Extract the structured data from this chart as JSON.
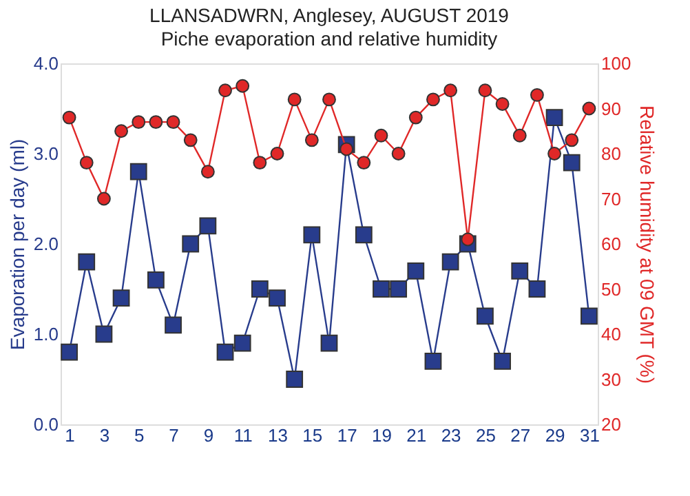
{
  "chart_data": {
    "type": "line",
    "title": "LLANSADWRN, Anglesey, AUGUST 2019",
    "subtitle": "Piche evaporation and relative humidity",
    "ylabel": "Evaporation per day (ml)",
    "y2label": "Relative humidity at 09 GMT (%)",
    "x": [
      1,
      2,
      3,
      4,
      5,
      6,
      7,
      8,
      9,
      10,
      11,
      12,
      13,
      14,
      15,
      16,
      17,
      18,
      19,
      20,
      21,
      22,
      23,
      24,
      25,
      26,
      27,
      28,
      29,
      30,
      31
    ],
    "xlim": [
      0.5,
      31.5
    ],
    "xticks": [
      1,
      3,
      5,
      7,
      9,
      11,
      13,
      15,
      17,
      19,
      21,
      23,
      25,
      27,
      29,
      31
    ],
    "ylim": [
      0,
      4
    ],
    "yticks": [
      {
        "value": 0,
        "label": "0.0"
      },
      {
        "value": 1,
        "label": "1.0"
      },
      {
        "value": 2,
        "label": "2.0"
      },
      {
        "value": 3,
        "label": "3.0"
      },
      {
        "value": 4,
        "label": "4.0"
      }
    ],
    "y2lim": [
      20,
      100
    ],
    "y2ticks": [
      20,
      30,
      40,
      50,
      60,
      70,
      80,
      90,
      100
    ],
    "grid": false,
    "series": [
      {
        "color": "#283c8c",
        "marker": "square",
        "values": [
          0.8,
          1.8,
          1.0,
          1.4,
          2.8,
          1.6,
          1.1,
          2.0,
          2.2,
          0.8,
          0.9,
          1.5,
          1.4,
          0.5,
          2.1,
          0.9,
          3.1,
          2.1,
          1.5,
          1.5,
          1.7,
          0.7,
          1.8,
          2.0,
          1.2,
          0.7,
          1.7,
          1.5,
          3.4,
          2.9,
          1.2
        ]
      },
      {
        "color": "#e02828",
        "marker": "circle",
        "axis": "y2",
        "values": [
          88,
          78,
          70,
          85,
          87,
          87,
          87,
          83,
          76,
          94,
          95,
          78,
          80,
          92,
          83,
          92,
          81,
          78,
          84,
          80,
          88,
          92,
          94,
          61,
          94,
          91,
          84,
          93,
          80,
          83,
          90
        ]
      }
    ]
  }
}
